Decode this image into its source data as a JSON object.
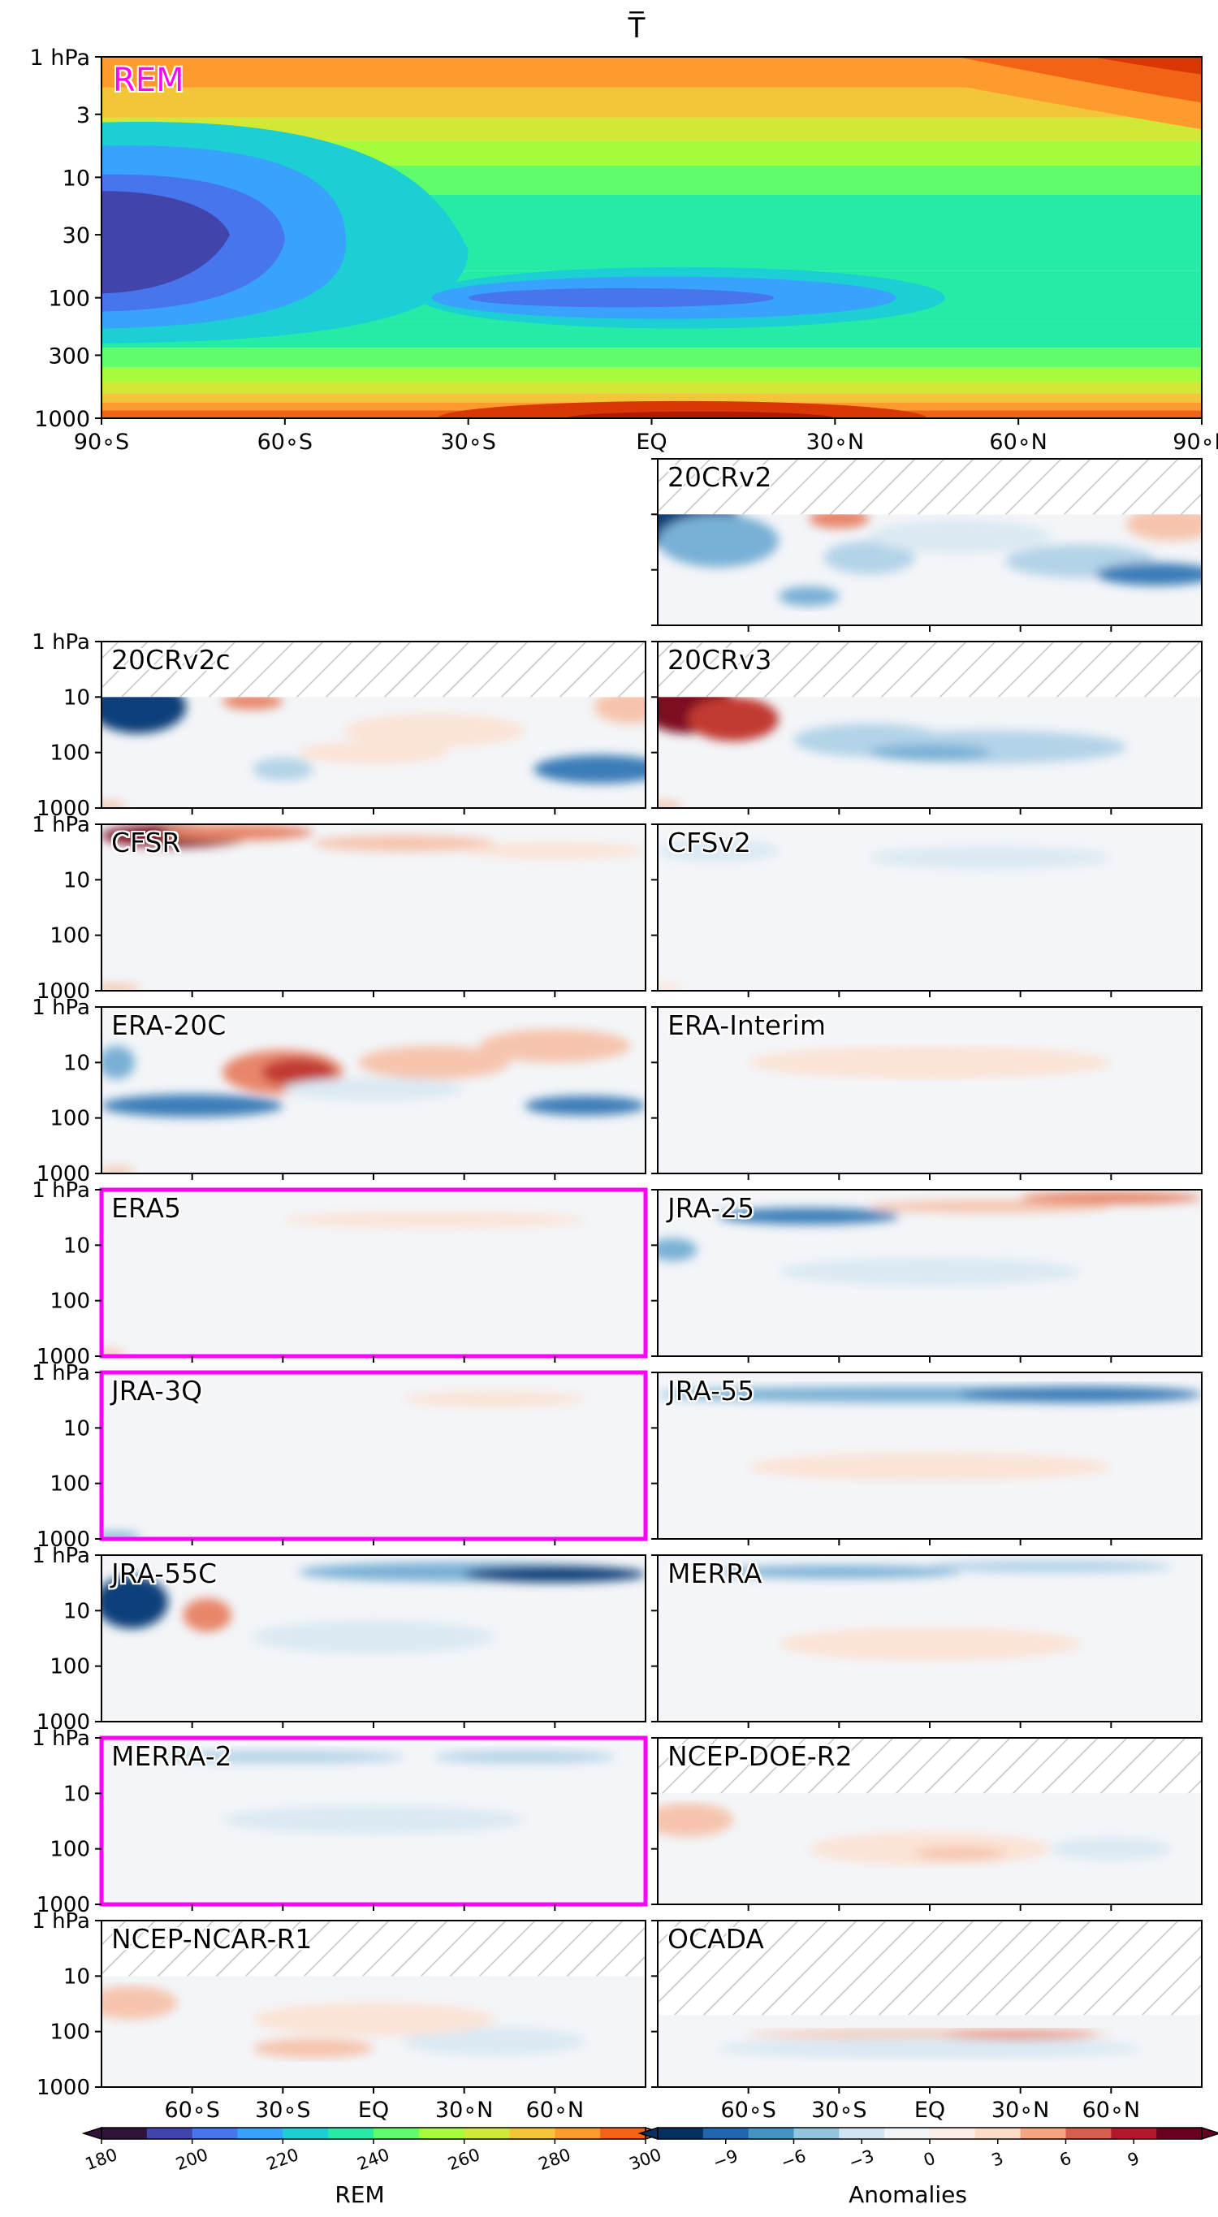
{
  "figure": {
    "title": "T̅",
    "colorbar_rem_label": "REM",
    "colorbar_anom_label": "Anomalies"
  },
  "chart_data": [
    {
      "type": "heatmap",
      "title": "T̅",
      "panel_label": "REM",
      "highlighted_label_color": "#ff00ff",
      "variable": "zonal-mean temperature",
      "x_ticks": [
        "90∘S",
        "60∘S",
        "30∘S",
        "EQ",
        "30∘N",
        "60∘N",
        "90∘N"
      ],
      "x_values": [
        -90,
        -60,
        -30,
        0,
        30,
        60,
        90
      ],
      "y_ticks": [
        "1 hPa",
        "3",
        "10",
        "30",
        "100",
        "300",
        "1000"
      ],
      "y_values": [
        1,
        3,
        10,
        30,
        100,
        300,
        1000
      ],
      "y_scale": "log",
      "xlim": [
        -90,
        90
      ],
      "ylim": [
        1000,
        1
      ],
      "colormap": "turbo",
      "color_levels": [
        180,
        190,
        200,
        210,
        220,
        230,
        240,
        250,
        260,
        270,
        280,
        290,
        300
      ],
      "colorbar_ticks": [
        "180",
        "200",
        "220",
        "240",
        "260",
        "280",
        "300"
      ],
      "colorbar_label": "REM"
    },
    {
      "type": "heatmap",
      "subtype": "anomaly_panels",
      "x_ticks": [
        "60∘S",
        "30∘S",
        "EQ",
        "30∘N",
        "60∘N"
      ],
      "x_values": [
        -60,
        -30,
        0,
        30,
        60
      ],
      "xlim": [
        -90,
        90
      ],
      "y_ticks": [
        "1 hPa",
        "10",
        "100",
        "1000"
      ],
      "y_values": [
        1,
        10,
        100,
        1000
      ],
      "y_scale": "log",
      "ylim": [
        1000,
        1
      ],
      "colormap": "RdBu_r",
      "color_levels": [
        -12,
        -9,
        -6,
        -3,
        0,
        3,
        6,
        9,
        12
      ],
      "colorbar_ticks": [
        "−9",
        "−6",
        "−3",
        "0",
        "3",
        "6",
        "9"
      ],
      "colorbar_label": "Anomalies",
      "panels": [
        {
          "name": "20CRv2",
          "hatched_above_hPa": 10,
          "highlighted": false
        },
        {
          "name": "20CRv2c",
          "hatched_above_hPa": 10,
          "highlighted": false
        },
        {
          "name": "20CRv3",
          "hatched_above_hPa": 10,
          "highlighted": false
        },
        {
          "name": "CFSR",
          "hatched_above_hPa": null,
          "highlighted": false
        },
        {
          "name": "CFSv2",
          "hatched_above_hPa": null,
          "highlighted": false
        },
        {
          "name": "ERA-20C",
          "hatched_above_hPa": null,
          "highlighted": false
        },
        {
          "name": "ERA-Interim",
          "hatched_above_hPa": null,
          "highlighted": false
        },
        {
          "name": "ERA5",
          "hatched_above_hPa": null,
          "highlighted": true
        },
        {
          "name": "JRA-25",
          "hatched_above_hPa": null,
          "highlighted": false
        },
        {
          "name": "JRA-3Q",
          "hatched_above_hPa": null,
          "highlighted": true
        },
        {
          "name": "JRA-55",
          "hatched_above_hPa": null,
          "highlighted": false
        },
        {
          "name": "JRA-55C",
          "hatched_above_hPa": null,
          "highlighted": false
        },
        {
          "name": "MERRA",
          "hatched_above_hPa": null,
          "highlighted": false
        },
        {
          "name": "MERRA-2",
          "hatched_above_hPa": null,
          "highlighted": true
        },
        {
          "name": "NCEP-DOE-R2",
          "hatched_above_hPa": 10,
          "highlighted": false
        },
        {
          "name": "NCEP-NCAR-R1",
          "hatched_above_hPa": 10,
          "highlighted": false
        },
        {
          "name": "OCADA",
          "hatched_above_hPa": 50,
          "highlighted": false
        }
      ]
    }
  ]
}
